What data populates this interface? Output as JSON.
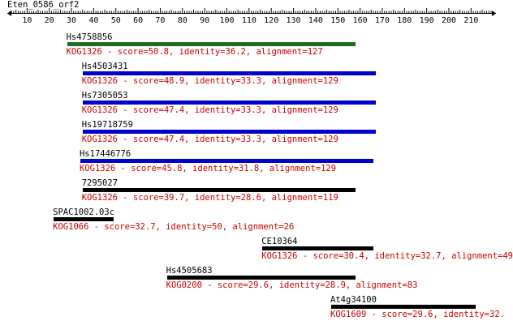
{
  "title": "Eten_0586_orf2",
  "ruler": {
    "labels": [
      "10",
      "20",
      "30",
      "40",
      "50",
      "60",
      "70",
      "80",
      "90",
      "100",
      "110",
      "120",
      "130",
      "140",
      "150",
      "160",
      "170",
      "180",
      "190",
      "200",
      "210"
    ]
  },
  "colors": {
    "text": "#000000",
    "description": "#cc0000",
    "bar_green": "#1f6b1f",
    "bar_blue": "#0000cc",
    "bar_black": "#000000"
  },
  "hits": [
    {
      "name": "Hs4758856",
      "description": "KOG1326 - score=50.8, identity=36.2, alignment=127",
      "start": 28,
      "end": 158,
      "color": "bar_green"
    },
    {
      "name": "Hs4503431",
      "description": "KOG1326 - score=48.9, identity=33.3, alignment=129",
      "start": 35,
      "end": 167,
      "color": "bar_blue"
    },
    {
      "name": "Hs7305053",
      "description": "KOG1326 - score=47.4, identity=33.3, alignment=129",
      "start": 35,
      "end": 167,
      "color": "bar_blue"
    },
    {
      "name": "Hs19718759",
      "description": "KOG1326 - score=47.4, identity=33.3, alignment=129",
      "start": 35,
      "end": 167,
      "color": "bar_blue"
    },
    {
      "name": "Hs17446776",
      "description": "KOG1326 - score=45.8, identity=31.8, alignment=129",
      "start": 34,
      "end": 166,
      "color": "bar_blue"
    },
    {
      "name": "7295027",
      "description": "KOG1326 - score=39.7, identity=28.6, alignment=119",
      "start": 35,
      "end": 158,
      "color": "bar_black"
    },
    {
      "name": "SPAC1002.03c",
      "description": "KOG1066 - score=32.7, identity=50, alignment=26",
      "start": 22,
      "end": 49,
      "color": "bar_black"
    },
    {
      "name": "CE10364",
      "description": "KOG1326 - score=30.4, identity=32.7, alignment=49",
      "start": 116,
      "end": 166,
      "color": "bar_black"
    },
    {
      "name": "Hs4505683",
      "description": "KOG0200 - score=29.6, identity=28.9, alignment=83",
      "start": 73,
      "end": 158,
      "color": "bar_black"
    },
    {
      "name": "At4g34100",
      "description": "KOG1609 - score=29.6, identity=32.",
      "start": 147,
      "end": 212,
      "color": "bar_black"
    }
  ]
}
